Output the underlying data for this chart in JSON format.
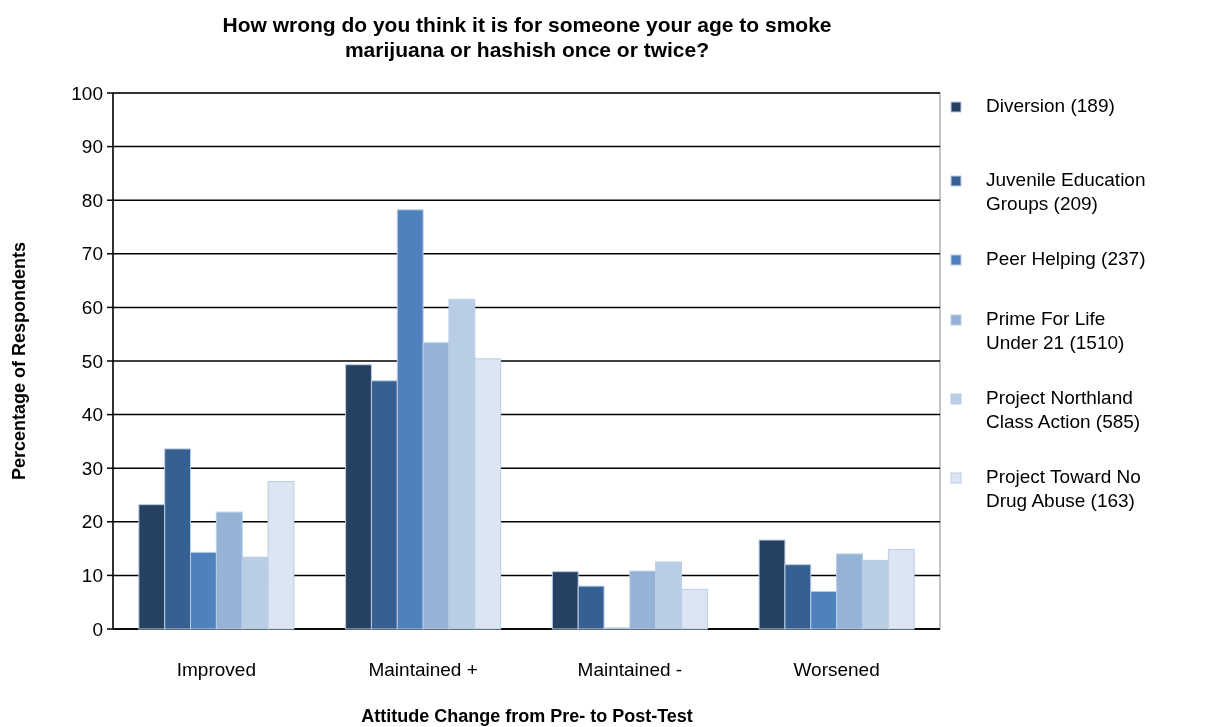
{
  "chart_data": {
    "type": "bar",
    "title": "How wrong do you think it is for someone your age to smoke marijuana or hashish once or twice?",
    "xlabel": "Attitude Change from Pre- to Post-Test",
    "ylabel": "Percentage of Respondents",
    "categories": [
      "Improved",
      "Maintained +",
      "Maintained -",
      "Worsened"
    ],
    "series": [
      {
        "name": "Diversion (189)",
        "color": "#254061",
        "values": [
          23.2,
          49.3,
          10.7,
          16.6
        ]
      },
      {
        "name": "Juvenile Education Groups (209)",
        "color": "#366092",
        "values": [
          33.6,
          46.3,
          8.0,
          12.0
        ]
      },
      {
        "name": "Peer Helping (237)",
        "color": "#4f81bd",
        "values": [
          14.3,
          78.2,
          0.2,
          7.0
        ]
      },
      {
        "name": "Prime For Life Under 21 (1510)",
        "color": "#95b3d7",
        "values": [
          21.8,
          53.4,
          10.8,
          14.0
        ]
      },
      {
        "name": "Project Northland Class Action (585)",
        "color": "#b9cde5",
        "values": [
          13.4,
          61.5,
          12.5,
          12.8
        ]
      },
      {
        "name": "Project Toward No Drug Abuse (163)",
        "color": "#dce6f2",
        "values": [
          27.5,
          50.4,
          7.4,
          14.8
        ]
      }
    ],
    "ylim": [
      0,
      100
    ],
    "yticks": [
      0,
      10,
      20,
      30,
      40,
      50,
      60,
      70,
      80,
      90,
      100
    ],
    "grid": "y",
    "legend": "right"
  }
}
